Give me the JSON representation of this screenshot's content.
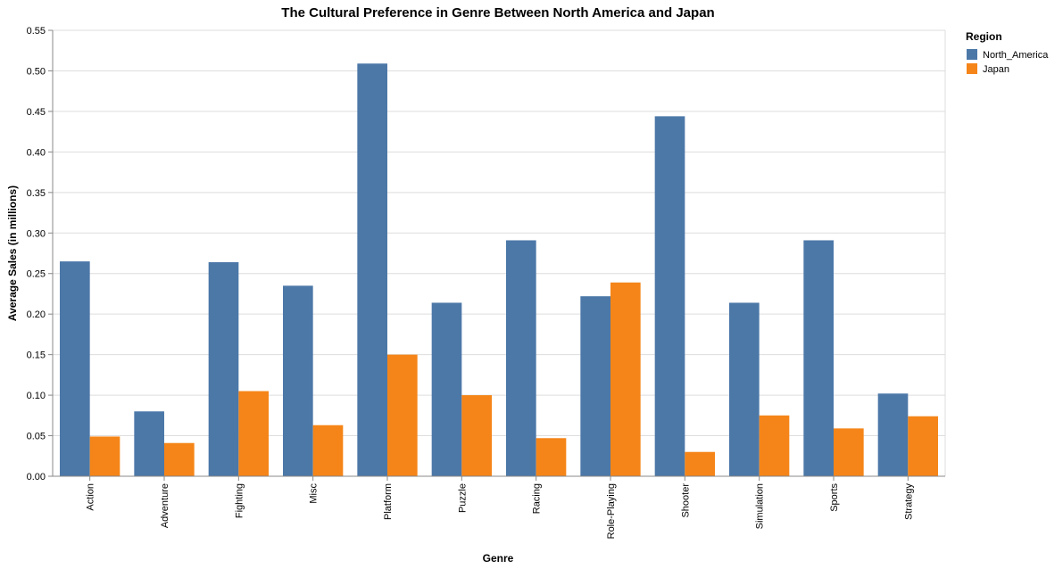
{
  "chart_data": {
    "type": "bar",
    "title": "The Cultural Preference in Genre Between North America and Japan",
    "xlabel": "Genre",
    "ylabel": "Average Sales (in millions)",
    "ylim": [
      0,
      0.55
    ],
    "yticks": [
      "0.00",
      "0.05",
      "0.10",
      "0.15",
      "0.20",
      "0.25",
      "0.30",
      "0.35",
      "0.40",
      "0.45",
      "0.50",
      "0.55"
    ],
    "grid": true,
    "legend_title": "Region",
    "legend_position": "top-right",
    "categories": [
      "Action",
      "Adventure",
      "Fighting",
      "Misc",
      "Platform",
      "Puzzle",
      "Racing",
      "Role-Playing",
      "Shooter",
      "Simulation",
      "Sports",
      "Strategy"
    ],
    "series": [
      {
        "name": "North_America",
        "color": "#4c78a8",
        "values": [
          0.265,
          0.08,
          0.264,
          0.235,
          0.509,
          0.214,
          0.291,
          0.222,
          0.444,
          0.214,
          0.291,
          0.102
        ]
      },
      {
        "name": "Japan",
        "color": "#f58518",
        "values": [
          0.049,
          0.041,
          0.105,
          0.063,
          0.15,
          0.1,
          0.047,
          0.239,
          0.03,
          0.075,
          0.059,
          0.074
        ]
      }
    ]
  }
}
